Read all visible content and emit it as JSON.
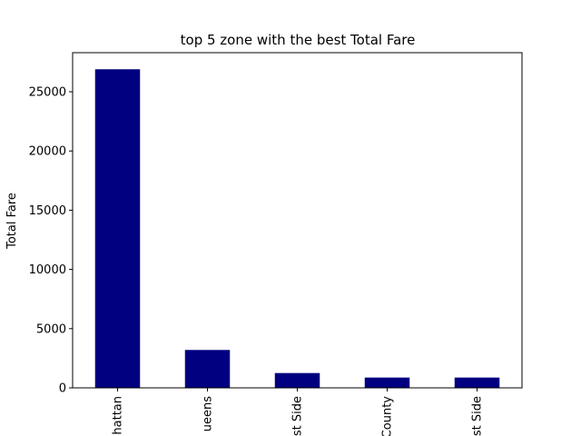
{
  "chart_data": {
    "type": "bar",
    "title": "top 5 zone with the best Total Fare",
    "xlabel": "",
    "ylabel": "Total Fare",
    "categories": [
      "hattan",
      "ueens",
      "st Side",
      "County",
      "st Side"
    ],
    "values": [
      26900,
      3200,
      1250,
      870,
      870
    ],
    "ylim": [
      0,
      28300
    ],
    "yticks": [
      0,
      5000,
      10000,
      15000,
      20000,
      25000
    ],
    "bar_color": "#000080",
    "grid": false,
    "legend": "none"
  }
}
